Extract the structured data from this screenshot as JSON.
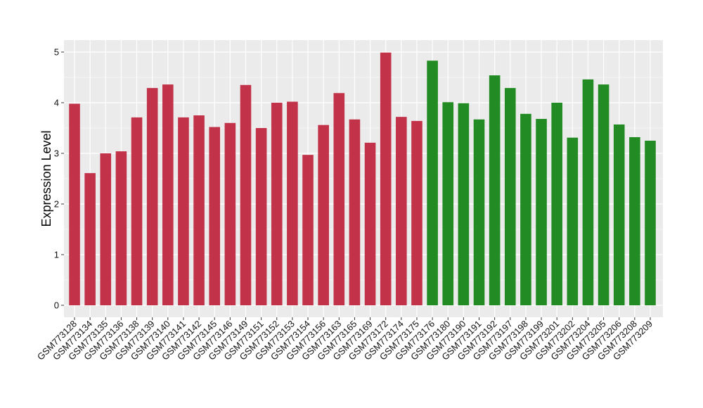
{
  "chart_data": {
    "type": "bar",
    "title": "",
    "xlabel": "",
    "ylabel": "Expression Level",
    "ylim": [
      0,
      5
    ],
    "yticks": [
      0,
      1,
      2,
      3,
      4,
      5
    ],
    "grid": true,
    "legend": "none",
    "categories": [
      "GSM773128",
      "GSM773134",
      "GSM773135",
      "GSM773136",
      "GSM773138",
      "GSM773139",
      "GSM773140",
      "GSM773141",
      "GSM773142",
      "GSM773145",
      "GSM773146",
      "GSM773149",
      "GSM773151",
      "GSM773152",
      "GSM773153",
      "GSM773154",
      "GSM773156",
      "GSM773163",
      "GSM773165",
      "GSM773169",
      "GSM773172",
      "GSM773174",
      "GSM773175",
      "GSM773176",
      "GSM773180",
      "GSM773190",
      "GSM773191",
      "GSM773192",
      "GSM773197",
      "GSM773198",
      "GSM773199",
      "GSM773201",
      "GSM773202",
      "GSM773204",
      "GSM773205",
      "GSM773206",
      "GSM773208",
      "GSM773209"
    ],
    "values": [
      3.98,
      2.61,
      3.0,
      3.04,
      3.71,
      4.29,
      4.36,
      3.71,
      3.75,
      3.52,
      3.6,
      4.35,
      3.5,
      4.0,
      4.02,
      2.97,
      3.56,
      4.19,
      3.67,
      3.21,
      4.99,
      3.72,
      3.64,
      4.83,
      4.01,
      3.99,
      3.67,
      4.54,
      4.29,
      3.78,
      3.68,
      4.0,
      3.31,
      4.46,
      4.36,
      3.57,
      3.32,
      3.25
    ],
    "groups": [
      "a",
      "a",
      "a",
      "a",
      "a",
      "a",
      "a",
      "a",
      "a",
      "a",
      "a",
      "a",
      "a",
      "a",
      "a",
      "a",
      "a",
      "a",
      "a",
      "a",
      "a",
      "a",
      "a",
      "b",
      "b",
      "b",
      "b",
      "b",
      "b",
      "b",
      "b",
      "b",
      "b",
      "b",
      "b",
      "b",
      "b",
      "b"
    ],
    "colors": {
      "a": "#C2334A",
      "b": "#238B23",
      "panel": "#EBEBEB",
      "grid": "#FFFFFF"
    }
  }
}
